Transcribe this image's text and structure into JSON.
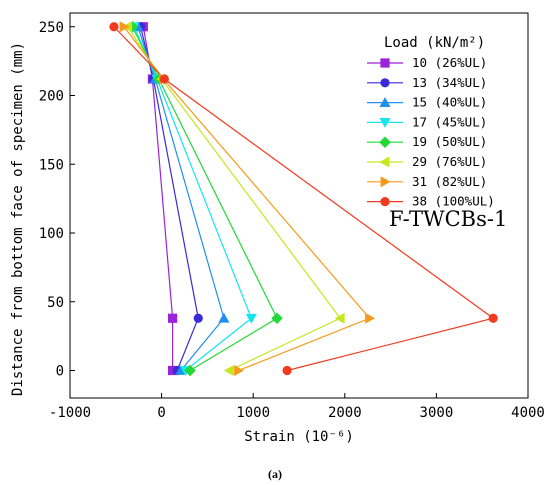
{
  "chart_data": {
    "type": "line",
    "xlabel": "Strain (10⁻⁶)",
    "ylabel": "Distance from bottom face of specimen (mm)",
    "xlim": [
      -1000,
      4000
    ],
    "ylim": [
      -20,
      260
    ],
    "xticks": [
      -1000,
      0,
      1000,
      2000,
      3000,
      4000
    ],
    "yticks": [
      0,
      50,
      100,
      150,
      200,
      250
    ],
    "grid": false,
    "legend_title": "Load (kN/m²)",
    "legend_position": "top-right",
    "annotation": "F-TWCBs-1",
    "caption": "(a)",
    "series": [
      {
        "name": "10 (26%UL)",
        "color": "#9a22d8",
        "marker": "square",
        "points": [
          [
            -200,
            250
          ],
          [
            -100,
            212
          ],
          [
            120,
            38
          ],
          [
            120,
            0
          ]
        ]
      },
      {
        "name": "13 (34%UL)",
        "color": "#3a2ad8",
        "marker": "circle",
        "points": [
          [
            -230,
            250
          ],
          [
            -90,
            212
          ],
          [
            400,
            38
          ],
          [
            170,
            0
          ]
        ]
      },
      {
        "name": "15 (40%UL)",
        "color": "#1f8ff2",
        "marker": "triangle-up",
        "points": [
          [
            -260,
            250
          ],
          [
            -70,
            212
          ],
          [
            680,
            38
          ],
          [
            210,
            0
          ]
        ]
      },
      {
        "name": "17 (45%UL)",
        "color": "#14e6f0",
        "marker": "triangle-down",
        "points": [
          [
            -300,
            250
          ],
          [
            -50,
            212
          ],
          [
            980,
            38
          ],
          [
            260,
            0
          ]
        ]
      },
      {
        "name": "19 (50%UL)",
        "color": "#22d836",
        "marker": "diamond",
        "points": [
          [
            -320,
            250
          ],
          [
            -30,
            212
          ],
          [
            1260,
            38
          ],
          [
            310,
            0
          ]
        ]
      },
      {
        "name": "29 (76%UL)",
        "color": "#c6e61e",
        "marker": "triangle-left",
        "points": [
          [
            -370,
            250
          ],
          [
            0,
            212
          ],
          [
            1950,
            38
          ],
          [
            740,
            0
          ]
        ]
      },
      {
        "name": "31 (82%UL)",
        "color": "#f59a1a",
        "marker": "triangle-right",
        "points": [
          [
            -410,
            250
          ],
          [
            20,
            212
          ],
          [
            2270,
            38
          ],
          [
            840,
            0
          ]
        ]
      },
      {
        "name": "38 (100%UL)",
        "color": "#f23a1e",
        "marker": "circle",
        "points": [
          [
            -520,
            250
          ],
          [
            30,
            212
          ],
          [
            3620,
            38
          ],
          [
            1370,
            0
          ]
        ]
      }
    ]
  }
}
